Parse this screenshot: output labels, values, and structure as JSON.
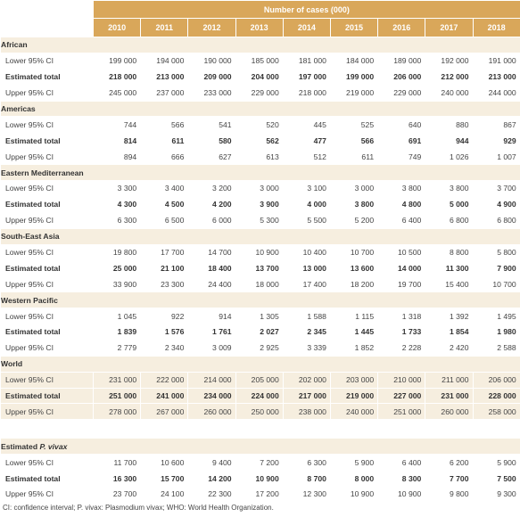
{
  "header": {
    "group_label": "Number of cases (000)"
  },
  "years": [
    "2010",
    "2011",
    "2012",
    "2013",
    "2014",
    "2015",
    "2016",
    "2017",
    "2018"
  ],
  "row_labels": {
    "lower": "Lower 95% CI",
    "estimated": "Estimated total",
    "upper": "Upper 95% CI"
  },
  "regions": [
    {
      "name": "African",
      "lower": [
        "199 000",
        "194 000",
        "190 000",
        "185 000",
        "181 000",
        "184 000",
        "189 000",
        "192 000",
        "191 000"
      ],
      "estimated": [
        "218 000",
        "213 000",
        "209 000",
        "204 000",
        "197 000",
        "199 000",
        "206 000",
        "212 000",
        "213 000"
      ],
      "upper": [
        "245 000",
        "237 000",
        "233 000",
        "229 000",
        "218 000",
        "219 000",
        "229 000",
        "240 000",
        "244 000"
      ]
    },
    {
      "name": "Americas",
      "lower": [
        "744",
        "566",
        "541",
        "520",
        "445",
        "525",
        "640",
        "880",
        "867"
      ],
      "estimated": [
        "814",
        "611",
        "580",
        "562",
        "477",
        "566",
        "691",
        "944",
        "929"
      ],
      "upper": [
        "894",
        "666",
        "627",
        "613",
        "512",
        "611",
        "749",
        "1 026",
        "1 007"
      ]
    },
    {
      "name": "Eastern Mediterranean",
      "lower": [
        "3 300",
        "3 400",
        "3 200",
        "3 000",
        "3 100",
        "3 000",
        "3 800",
        "3 800",
        "3 700"
      ],
      "estimated": [
        "4 300",
        "4 500",
        "4 200",
        "3 900",
        "4 000",
        "3 800",
        "4 800",
        "5 000",
        "4 900"
      ],
      "upper": [
        "6 300",
        "6 500",
        "6 000",
        "5 300",
        "5 500",
        "5 200",
        "6 400",
        "6 800",
        "6 800"
      ]
    },
    {
      "name": "South-East Asia",
      "lower": [
        "19 800",
        "17 700",
        "14 700",
        "10 900",
        "10 400",
        "10 700",
        "10 500",
        "8 800",
        "5 800"
      ],
      "estimated": [
        "25 000",
        "21 100",
        "18 400",
        "13 700",
        "13 000",
        "13 600",
        "14 000",
        "11 300",
        "7 900"
      ],
      "upper": [
        "33 900",
        "23 300",
        "24 400",
        "18 000",
        "17 400",
        "18 200",
        "19 700",
        "15 400",
        "10 700"
      ]
    },
    {
      "name": "Western Pacific",
      "lower": [
        "1 045",
        "922",
        "914",
        "1 305",
        "1 588",
        "1 115",
        "1 318",
        "1 392",
        "1 495"
      ],
      "estimated": [
        "1 839",
        "1 576",
        "1 761",
        "2 027",
        "2 345",
        "1 445",
        "1 733",
        "1 854",
        "1 980"
      ],
      "upper": [
        "2 779",
        "2 340",
        "3 009",
        "2 925",
        "3 339",
        "1 852",
        "2 228",
        "2 420",
        "2 588"
      ]
    },
    {
      "name": "World",
      "shaded": true,
      "lower": [
        "231 000",
        "222 000",
        "214 000",
        "205 000",
        "202 000",
        "203 000",
        "210 000",
        "211 000",
        "206 000"
      ],
      "estimated": [
        "251 000",
        "241 000",
        "234 000",
        "224 000",
        "217 000",
        "219 000",
        "227 000",
        "231 000",
        "228 000"
      ],
      "upper": [
        "278 000",
        "267 000",
        "260 000",
        "250 000",
        "238 000",
        "240 000",
        "251 000",
        "260 000",
        "258 000"
      ]
    }
  ],
  "vivax": {
    "name_prefix": "Estimated ",
    "name_italic": "P. vivax",
    "lower": [
      "11 700",
      "10 600",
      "9 400",
      "7 200",
      "6 300",
      "5 900",
      "6 400",
      "6 200",
      "5 900"
    ],
    "estimated": [
      "16 300",
      "15 700",
      "14 200",
      "10 900",
      "8 700",
      "8 000",
      "8 300",
      "7 700",
      "7 500"
    ],
    "upper": [
      "23 700",
      "24 100",
      "22 300",
      "17 200",
      "12 300",
      "10 900",
      "10 900",
      "9 800",
      "9 300"
    ]
  },
  "footnote": "CI: confidence interval; P. vivax: Plasmodium vivax; WHO: World Health Organization."
}
